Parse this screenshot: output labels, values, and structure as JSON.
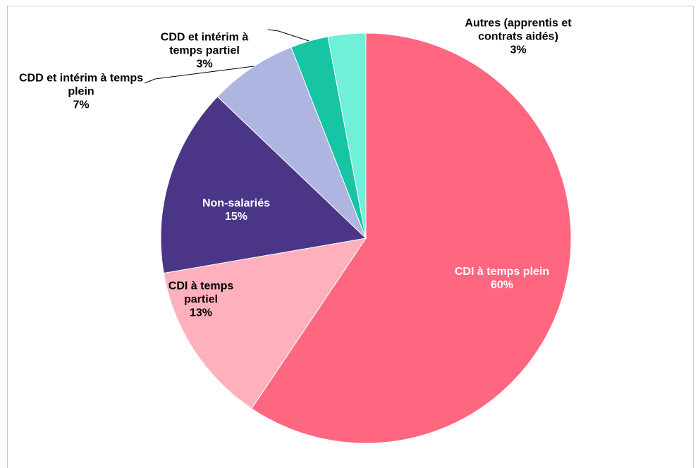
{
  "chart_data": {
    "type": "pie",
    "categories": [
      "CDI à temps plein",
      "CDI à temps partiel",
      "Non-salariés",
      "CDD et intérim à temps plein",
      "CDD et intérim à temps partiel",
      "Autres (apprentis et contrats aidés)"
    ],
    "values": [
      60,
      13,
      15,
      7,
      3,
      3
    ],
    "value_labels": [
      "60%",
      "13%",
      "15%",
      "7%",
      "3%",
      "3%"
    ],
    "colors": [
      "#ff6680",
      "#ffb0bd",
      "#4b3587",
      "#adb5e0",
      "#17c4a4",
      "#70efd9"
    ],
    "label_colors": [
      "#ffffff",
      "#000000",
      "#ffffff",
      "#000000",
      "#000000",
      "#000000"
    ]
  }
}
